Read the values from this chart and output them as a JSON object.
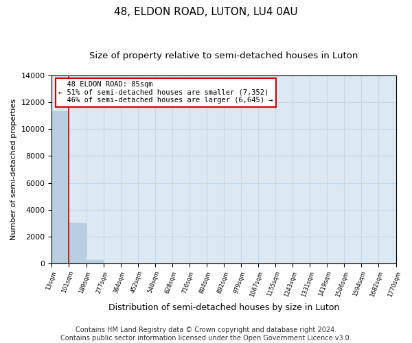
{
  "title": "48, ELDON ROAD, LUTON, LU4 0AU",
  "subtitle": "Size of property relative to semi-detached houses in Luton",
  "xlabel": "Distribution of semi-detached houses by size in Luton",
  "ylabel": "Number of semi-detached properties",
  "footer_line1": "Contains HM Land Registry data © Crown copyright and database right 2024.",
  "footer_line2": "Contains public sector information licensed under the Open Government Licence v3.0.",
  "bar_values": [
    11350,
    3020,
    250,
    30,
    10,
    5,
    3,
    2,
    1,
    1,
    0,
    0,
    0,
    0,
    0,
    0,
    0,
    0,
    0,
    0
  ],
  "x_labels": [
    "13sqm",
    "101sqm",
    "189sqm",
    "277sqm",
    "364sqm",
    "452sqm",
    "540sqm",
    "628sqm",
    "716sqm",
    "804sqm",
    "892sqm",
    "979sqm",
    "1067sqm",
    "1155sqm",
    "1243sqm",
    "1331sqm",
    "1419sqm",
    "1506sqm",
    "1594sqm",
    "1682sqm",
    "1770sqm"
  ],
  "bar_color": "#b8cfe0",
  "bar_edge_color": "#b8cfe0",
  "grid_color": "#c5d8e8",
  "background_color": "#dce8f2",
  "property_line_x": 1.0,
  "property_line_color": "#cc0000",
  "annotation_text": "  48 ELDON ROAD: 85sqm\n← 51% of semi-detached houses are smaller (7,352)\n  46% of semi-detached houses are larger (6,645) →",
  "annotation_box_color": "#ffffff",
  "annotation_border_color": "#cc0000",
  "ylim": [
    0,
    14000
  ],
  "yticks": [
    0,
    2000,
    4000,
    6000,
    8000,
    10000,
    12000,
    14000
  ],
  "title_fontsize": 11,
  "subtitle_fontsize": 9.5,
  "annotation_fontsize": 7.5,
  "footer_fontsize": 7,
  "ylabel_fontsize": 8,
  "xlabel_fontsize": 9
}
